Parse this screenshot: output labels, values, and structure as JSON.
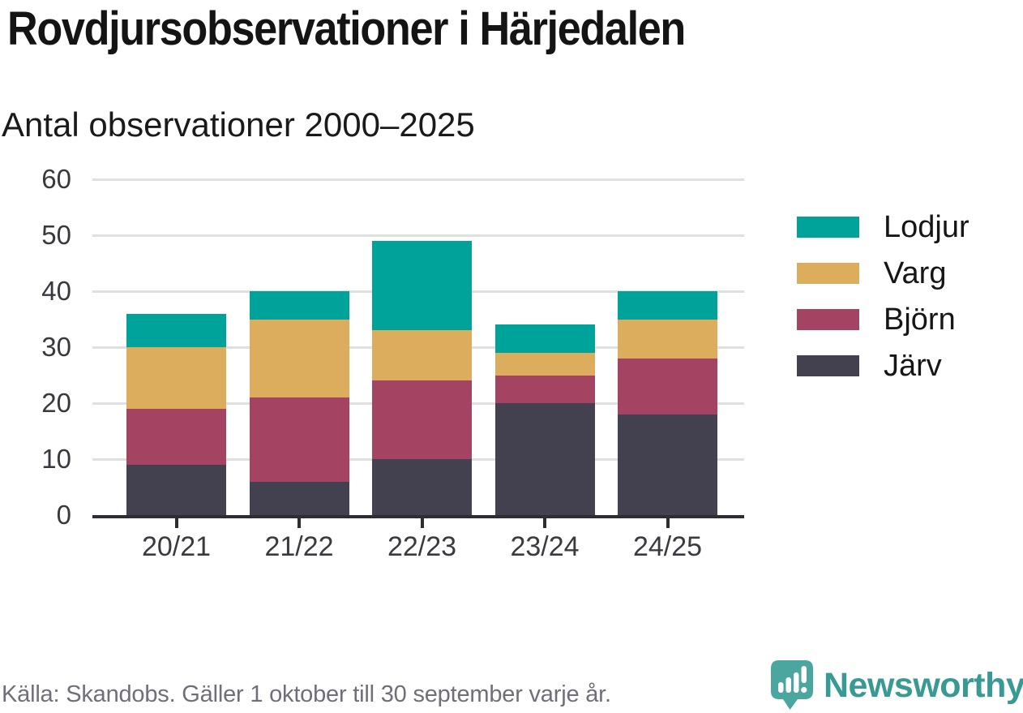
{
  "header": {
    "title": "Rovdjursobservationer i Härjedalen",
    "subtitle": "Antal observationer 2000–2025"
  },
  "chart_data": {
    "type": "bar",
    "stacked": true,
    "title": "Rovdjursobservationer i Härjedalen",
    "subtitle": "Antal observationer 2000–2025",
    "categories": [
      "20/21",
      "21/22",
      "22/23",
      "23/24",
      "24/25"
    ],
    "series": [
      {
        "name": "Lodjur",
        "color": "#00A39A",
        "values": [
          6,
          5,
          16,
          5,
          5
        ]
      },
      {
        "name": "Varg",
        "color": "#DBAD5D",
        "values": [
          11,
          14,
          9,
          4,
          7
        ]
      },
      {
        "name": "Björn",
        "color": "#A54462",
        "values": [
          10,
          15,
          14,
          5,
          10
        ]
      },
      {
        "name": "Järv",
        "color": "#434050",
        "values": [
          9,
          6,
          10,
          20,
          18
        ]
      }
    ],
    "stack_order_bottom_to_top": [
      "Järv",
      "Björn",
      "Varg",
      "Lodjur"
    ],
    "totals": [
      36,
      40,
      49,
      34,
      40
    ],
    "xlabel": "",
    "ylabel": "",
    "ylim": [
      0,
      60
    ],
    "yticks": [
      0,
      10,
      20,
      30,
      40,
      50,
      60
    ],
    "grid": true,
    "legend_position": "right"
  },
  "footer": {
    "source": "Källa: Skandobs. Gäller 1 oktober till 30 september varje år.",
    "brand": "Newsworthy"
  },
  "colors": {
    "teal": "#00A39A",
    "gold": "#DBAD5D",
    "maroon": "#A54462",
    "dark": "#434050",
    "axis": "#2E2D33",
    "grid": "#E0E0E0",
    "muted_text": "#716E7A",
    "brand_teal": "#389A93"
  }
}
